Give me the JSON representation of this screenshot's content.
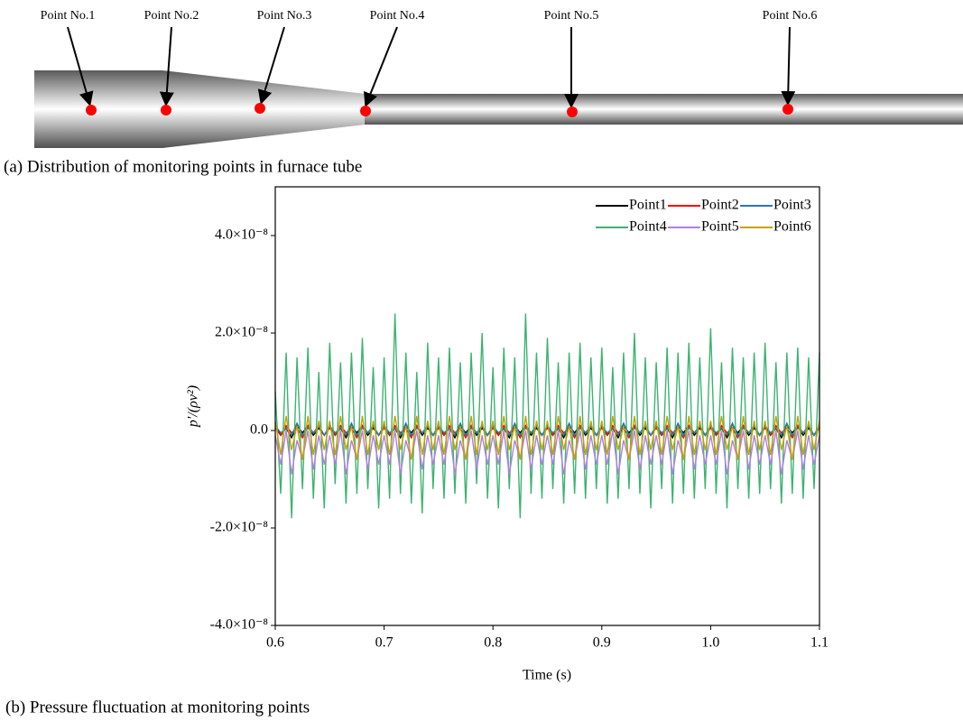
{
  "diagram": {
    "labels": [
      "Point No.1",
      "Point No.2",
      "Point No.3",
      "Point No.4",
      "Point No.5",
      "Point No.6"
    ],
    "caption": "(a) Distribution of monitoring points in furnace tube"
  },
  "chart_data": {
    "type": "line",
    "caption": "(b) Pressure fluctuation at monitoring points",
    "x_label": "Time (s)",
    "y_label": "p′/(ρv²)",
    "xlim": [
      0.6,
      1.1
    ],
    "xticks": [
      0.6,
      0.7,
      0.8,
      0.9,
      {
        "value": 1,
        "label": "1.0"
      },
      1.1
    ],
    "ylim": [
      -4e-08,
      5e-08
    ],
    "yticks": [
      {
        "value": -4e-08,
        "label": "-4.0×10⁻⁸"
      },
      {
        "value": -2e-08,
        "label": "-2.0×10⁻⁸"
      },
      {
        "value": 0,
        "label": "0.0"
      },
      {
        "value": 2e-08,
        "label": "2.0×10⁻⁸"
      },
      {
        "value": 4e-08,
        "label": "4.0×10⁻⁸"
      }
    ],
    "grid": false,
    "legend": "upper right",
    "x": [
      0.6,
      0.605,
      0.61,
      0.615,
      0.62,
      0.625,
      0.63,
      0.635,
      0.64,
      0.645,
      0.65,
      0.655,
      0.66,
      0.665,
      0.67,
      0.675,
      0.68,
      0.685,
      0.69,
      0.695,
      0.7,
      0.705,
      0.71,
      0.715,
      0.72,
      0.725,
      0.73,
      0.735,
      0.74,
      0.745,
      0.75,
      0.755,
      0.76,
      0.765,
      0.77,
      0.775,
      0.78,
      0.785,
      0.79,
      0.795,
      0.8,
      0.805,
      0.81,
      0.815,
      0.82,
      0.825,
      0.83,
      0.835,
      0.84,
      0.845,
      0.85,
      0.855,
      0.86,
      0.865,
      0.87,
      0.875,
      0.88,
      0.885,
      0.89,
      0.895,
      0.9,
      0.905,
      0.91,
      0.915,
      0.92,
      0.925,
      0.93,
      0.935,
      0.94,
      0.945,
      0.95,
      0.955,
      0.96,
      0.965,
      0.97,
      0.975,
      0.98,
      0.985,
      0.99,
      0.995,
      1,
      1.005,
      1.01,
      1.015,
      1.02,
      1.025,
      1.03,
      1.035,
      1.04,
      1.045,
      1.05,
      1.055,
      1.06,
      1.065,
      1.07,
      1.075,
      1.08,
      1.085,
      1.09,
      1.095,
      1.1
    ],
    "series": [
      {
        "name": "Point1",
        "color": "#000000",
        "values": [
          1e-09,
          -1e-09,
          5e-10,
          -1.5e-09,
          1e-09,
          -5e-10,
          1e-09,
          -1e-09,
          5e-10,
          -1e-09,
          1e-09,
          -1e-09,
          5e-10,
          -1.5e-09,
          1e-09,
          -5e-10,
          1e-09,
          -1e-09,
          5e-10,
          -1e-09,
          1e-09,
          -1e-09,
          5e-10,
          -1.5e-09,
          1e-09,
          -5e-10,
          1e-09,
          -1e-09,
          5e-10,
          -1e-09,
          1e-09,
          -1e-09,
          5e-10,
          -1.5e-09,
          1e-09,
          -5e-10,
          1e-09,
          -1e-09,
          5e-10,
          -1e-09,
          1e-09,
          -1e-09,
          5e-10,
          -1.5e-09,
          1e-09,
          -5e-10,
          1e-09,
          -1e-09,
          5e-10,
          -1e-09,
          1e-09,
          -1e-09,
          5e-10,
          -1.5e-09,
          1e-09,
          -5e-10,
          1e-09,
          -1e-09,
          5e-10,
          -1e-09,
          1e-09,
          -1e-09,
          5e-10,
          -1.5e-09,
          1e-09,
          -5e-10,
          1e-09,
          -1e-09,
          5e-10,
          -1e-09,
          1e-09,
          -1e-09,
          5e-10,
          -1.5e-09,
          1e-09,
          -5e-10,
          1e-09,
          -1e-09,
          5e-10,
          -1e-09,
          1e-09,
          -1e-09,
          5e-10,
          -1.5e-09,
          1e-09,
          -5e-10,
          1e-09,
          -1e-09,
          5e-10,
          -1e-09,
          1e-09,
          -1e-09,
          5e-10,
          -1.5e-09,
          1e-09,
          -5e-10,
          1e-09,
          -1e-09,
          5e-10,
          -1e-09,
          1e-09
        ]
      },
      {
        "name": "Point2",
        "color": "#ff0000",
        "values": [
          5e-10,
          -1e-09,
          1e-09,
          -5e-10,
          5e-10,
          -1.5e-09,
          1e-09,
          -5e-10,
          1e-09,
          -1e-09,
          5e-10,
          -1e-09,
          1e-09,
          -5e-10,
          5e-10,
          -1.5e-09,
          1e-09,
          -5e-10,
          1e-09,
          -1e-09,
          5e-10,
          -1e-09,
          1e-09,
          -5e-10,
          5e-10,
          -1.5e-09,
          1e-09,
          -5e-10,
          1e-09,
          -1e-09,
          5e-10,
          -1e-09,
          1e-09,
          -5e-10,
          5e-10,
          -1.5e-09,
          1e-09,
          -5e-10,
          1e-09,
          -1e-09,
          5e-10,
          -1e-09,
          1e-09,
          -5e-10,
          5e-10,
          -1.5e-09,
          1e-09,
          -5e-10,
          1e-09,
          -1e-09,
          5e-10,
          -1e-09,
          1e-09,
          -5e-10,
          5e-10,
          -1.5e-09,
          1e-09,
          -5e-10,
          1e-09,
          -1e-09,
          5e-10,
          -1e-09,
          1e-09,
          -5e-10,
          5e-10,
          -1.5e-09,
          1e-09,
          -5e-10,
          1e-09,
          -1e-09,
          5e-10,
          -1e-09,
          1e-09,
          -5e-10,
          5e-10,
          -1.5e-09,
          1e-09,
          -5e-10,
          1e-09,
          -1e-09,
          5e-10,
          -1e-09,
          1e-09,
          -5e-10,
          5e-10,
          -1.5e-09,
          1e-09,
          -5e-10,
          1e-09,
          -1e-09,
          5e-10,
          -1e-09,
          1e-09,
          -5e-10,
          5e-10,
          -1.5e-09,
          1e-09,
          -5e-10,
          1e-09,
          -1e-09,
          5e-10
        ]
      },
      {
        "name": "Point3",
        "color": "#2e75b6",
        "values": [
          1e-09,
          -5e-10,
          5e-10,
          -1e-09,
          1.5e-09,
          -1e-09,
          5e-10,
          -5e-10,
          1e-09,
          -1e-09,
          1e-09,
          -5e-10,
          5e-10,
          -1e-09,
          1.5e-09,
          -1e-09,
          5e-10,
          -5e-10,
          1e-09,
          -1e-09,
          1e-09,
          -5e-10,
          5e-10,
          -1e-09,
          1.5e-09,
          -1e-09,
          5e-10,
          -5e-10,
          1e-09,
          -1e-09,
          1e-09,
          -5e-10,
          5e-10,
          -1e-09,
          1.5e-09,
          -1e-09,
          5e-10,
          -5e-10,
          1e-09,
          -1e-09,
          1e-09,
          -5e-10,
          5e-10,
          -1e-09,
          1.5e-09,
          -1e-09,
          5e-10,
          -5e-10,
          1e-09,
          -1e-09,
          1e-09,
          -5e-10,
          5e-10,
          -1e-09,
          1.5e-09,
          -1e-09,
          5e-10,
          -5e-10,
          1e-09,
          -1e-09,
          1e-09,
          -5e-10,
          5e-10,
          -1e-09,
          1.5e-09,
          -1e-09,
          5e-10,
          -5e-10,
          1e-09,
          -1e-09,
          1e-09,
          -5e-10,
          5e-10,
          -1e-09,
          1.5e-09,
          -1e-09,
          5e-10,
          -5e-10,
          1e-09,
          -1e-09,
          1e-09,
          -5e-10,
          5e-10,
          -1e-09,
          1.5e-09,
          -1e-09,
          5e-10,
          -5e-10,
          1e-09,
          -1e-09,
          1e-09,
          -5e-10,
          5e-10,
          -1e-09,
          1.5e-09,
          -1e-09,
          5e-10,
          -5e-10,
          1e-09,
          -1e-09,
          1e-09
        ]
      },
      {
        "name": "Point4",
        "color": "#3cb371",
        "values": [
          8e-09,
          -1.3e-08,
          1.6e-08,
          -1.8e-08,
          1.5e-08,
          -1.2e-08,
          1.7e-08,
          -1.4e-08,
          1.2e-08,
          -1.6e-08,
          1.8e-08,
          -1.1e-08,
          1.4e-08,
          -1.5e-08,
          1.6e-08,
          -1.3e-08,
          1.9e-08,
          -1.2e-08,
          1.3e-08,
          -1.6e-08,
          1.5e-08,
          -1.4e-08,
          2.4e-08,
          -1.3e-08,
          1.6e-08,
          -1.5e-08,
          1.2e-08,
          -1.7e-08,
          1.8e-08,
          -1.2e-08,
          1.5e-08,
          -1.4e-08,
          1.7e-08,
          -1.3e-08,
          1.4e-08,
          -1.5e-08,
          1.6e-08,
          -1.1e-08,
          2e-08,
          -1.4e-08,
          1.3e-08,
          -1.6e-08,
          1.7e-08,
          -1.2e-08,
          1.5e-08,
          -1.8e-08,
          2.4e-08,
          -1.3e-08,
          1.6e-08,
          -1.4e-08,
          1.9e-08,
          -1.2e-08,
          1.4e-08,
          -1.5e-08,
          1.6e-08,
          -1.3e-08,
          1.8e-08,
          -1.4e-08,
          1.5e-08,
          -1.2e-08,
          1.7e-08,
          -1.5e-08,
          1.3e-08,
          -1.4e-08,
          1.6e-08,
          -1.2e-08,
          2e-08,
          -1.3e-08,
          1.5e-08,
          -1.6e-08,
          1.4e-08,
          -1.2e-08,
          1.7e-08,
          -1.5e-08,
          1.6e-08,
          -1.3e-08,
          1.8e-08,
          -1.4e-08,
          1.5e-08,
          -1.2e-08,
          2.1e-08,
          -1.3e-08,
          1.4e-08,
          -1.6e-08,
          1.7e-08,
          -1.2e-08,
          1.5e-08,
          -1.4e-08,
          1.6e-08,
          -1.3e-08,
          1.8e-08,
          -1.2e-08,
          1.4e-08,
          -1.5e-08,
          1.6e-08,
          -1.3e-08,
          1.7e-08,
          -1.4e-08,
          1.5e-08,
          -1.2e-08,
          1.6e-08
        ]
      },
      {
        "name": "Point5",
        "color": "#b07fe0",
        "values": [
          -1e-09,
          -7e-09,
          0,
          -9e-09,
          -2e-09,
          -6e-09,
          0,
          -8e-09,
          -1e-09,
          -7e-09,
          -1e-09,
          -7e-09,
          0,
          -9e-09,
          -2e-09,
          -6e-09,
          0,
          -8e-09,
          -1e-09,
          -7e-09,
          -1e-09,
          -7e-09,
          0,
          -9e-09,
          -2e-09,
          -6e-09,
          0,
          -8e-09,
          -1e-09,
          -7e-09,
          -1e-09,
          -7e-09,
          0,
          -9e-09,
          -2e-09,
          -6e-09,
          0,
          -8e-09,
          -1e-09,
          -7e-09,
          -1e-09,
          -7e-09,
          0,
          -9e-09,
          -2e-09,
          -6e-09,
          0,
          -8e-09,
          -1e-09,
          -7e-09,
          -1e-09,
          -7e-09,
          0,
          -9e-09,
          -2e-09,
          -6e-09,
          0,
          -8e-09,
          -1e-09,
          -7e-09,
          -1e-09,
          -7e-09,
          0,
          -9e-09,
          -2e-09,
          -6e-09,
          0,
          -8e-09,
          -1e-09,
          -7e-09,
          -1e-09,
          -7e-09,
          0,
          -9e-09,
          -2e-09,
          -6e-09,
          0,
          -8e-09,
          -1e-09,
          -7e-09,
          -1e-09,
          -7e-09,
          0,
          -9e-09,
          -2e-09,
          -6e-09,
          0,
          -8e-09,
          -1e-09,
          -7e-09,
          -1e-09,
          -7e-09,
          0,
          -9e-09,
          -2e-09,
          -6e-09,
          0,
          -8e-09,
          -1e-09,
          -7e-09,
          -1e-09
        ]
      },
      {
        "name": "Point6",
        "color": "#c8a000",
        "values": [
          2e-09,
          -5e-09,
          3e-09,
          -4e-09,
          1e-09,
          -6e-09,
          3e-09,
          -5e-09,
          2e-09,
          -4e-09,
          2e-09,
          -5e-09,
          3e-09,
          -4e-09,
          1e-09,
          -6e-09,
          3e-09,
          -5e-09,
          2e-09,
          -4e-09,
          2e-09,
          -5e-09,
          3e-09,
          -4e-09,
          1e-09,
          -6e-09,
          3e-09,
          -5e-09,
          2e-09,
          -4e-09,
          2e-09,
          -5e-09,
          3e-09,
          -4e-09,
          1e-09,
          -6e-09,
          3e-09,
          -5e-09,
          2e-09,
          -4e-09,
          2e-09,
          -5e-09,
          3e-09,
          -4e-09,
          1e-09,
          -6e-09,
          3e-09,
          -5e-09,
          2e-09,
          -4e-09,
          2e-09,
          -5e-09,
          3e-09,
          -4e-09,
          1e-09,
          -6e-09,
          3e-09,
          -5e-09,
          2e-09,
          -4e-09,
          2e-09,
          -5e-09,
          3e-09,
          -4e-09,
          1e-09,
          -6e-09,
          3e-09,
          -5e-09,
          2e-09,
          -4e-09,
          2e-09,
          -5e-09,
          3e-09,
          -4e-09,
          1e-09,
          -6e-09,
          3e-09,
          -5e-09,
          2e-09,
          -4e-09,
          2e-09,
          -5e-09,
          3e-09,
          -4e-09,
          1e-09,
          -6e-09,
          3e-09,
          -5e-09,
          2e-09,
          -4e-09,
          2e-09,
          -5e-09,
          3e-09,
          -4e-09,
          1e-09,
          -6e-09,
          3e-09,
          -5e-09,
          2e-09,
          -4e-09,
          2e-09
        ]
      }
    ]
  }
}
